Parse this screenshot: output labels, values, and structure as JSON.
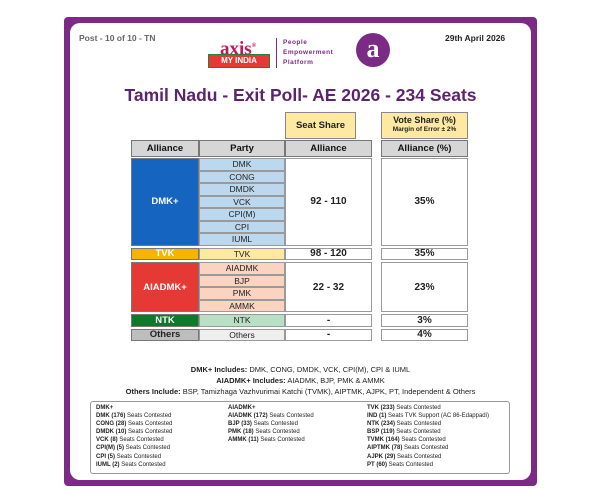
{
  "post_label": "Post - 10 of 10 - TN",
  "date": "29th April 2026",
  "logo": {
    "brand_top": "axis",
    "brand_mark": "®",
    "brand_bottom": "MY INDIA",
    "tagline_1": "People",
    "tagline_2": "Empowerment",
    "tagline_3": "Platform",
    "circle_letter": "a"
  },
  "title": "Tamil Nadu - Exit Poll- AE 2026 - 234 Seats",
  "table": {
    "seat_share_header": "Seat Share",
    "vote_share_header": "Vote Share (%)",
    "margin_of_error": "Margin of Error ± 2%",
    "col_alliance": "Alliance",
    "col_party": "Party",
    "col_seat_alliance": "Alliance",
    "col_vote_alliance": "Alliance (%)",
    "rows": [
      {
        "alliance": "DMK+",
        "parties": [
          "DMK",
          "CONG",
          "DMDK",
          "VCK",
          "CPI(M)",
          "CPI",
          "IUML"
        ],
        "seats": "92 - 110",
        "vote": "35%"
      },
      {
        "alliance": "TVK",
        "parties": [
          "TVK"
        ],
        "seats": "98 - 120",
        "vote": "35%"
      },
      {
        "alliance": "AIADMK+",
        "parties": [
          "AIADMK",
          "BJP",
          "PMK",
          "AMMK"
        ],
        "seats": "22 - 32",
        "vote": "23%"
      },
      {
        "alliance": "NTK",
        "parties": [
          "NTK"
        ],
        "seats": "-",
        "vote": "3%"
      },
      {
        "alliance": "Others",
        "parties": [
          "Others"
        ],
        "seats": "-",
        "vote": "4%"
      }
    ]
  },
  "includes": {
    "dmk_label": "DMK+ Includes:",
    "dmk_text": "DMK, CONG, DMDK, VCK, CPI(M), CPI & IUML",
    "aiadmk_label": "AIADMK+ Includes:",
    "aiadmk_text": "AIADMK, BJP, PMK & AMMK",
    "others_label": "Others Include:",
    "others_text": "BSP, Tamizhaga Vazhvurimai Katchi (TVMK), AIPTMK, AJPK, PT, Independent & Others"
  },
  "seats_contested": {
    "col1_title": "DMK+",
    "col1": [
      "DMK (176) Seats Contested",
      "CONG (28) Seats Contested",
      "DMDK (10) Seats Contested",
      "VCK (8) Seats Contested",
      "CPI(M) (5) Seats Contested",
      "CPI (5) Seats Contested",
      "IUML (2) Seats Contested"
    ],
    "col2_title": "AIADMK+",
    "col2": [
      "AIADMK (172) Seats Contested",
      "BJP (33) Seats Contested",
      "PMK (18) Seats Contested",
      "AMMK (11) Seats Contested"
    ],
    "col3": [
      "TVK (233) Seats Contested",
      "IND (1) Seats TVK Support (AC 86-Edappadi)",
      "NTK (234) Seats Contested",
      "BSP (119) Seats Contested",
      "TVMK (164) Seats Contested",
      "AIPTMK (78) Seats Contested",
      "AJPK (29) Seats Contested",
      "PT (60) Seats Contested"
    ]
  },
  "colors": {
    "frame": "#7b2a86",
    "dmk_alliance": "#1565c0",
    "dmk_party": "#bcd8ee",
    "tvk_alliance": "#f5b400",
    "tvk_party": "#fde9a1",
    "aiadmk_alliance": "#e53935",
    "aiadmk_party": "#fbd3c1",
    "ntk_alliance": "#0b7a2a",
    "ntk_party": "#b9e0c5",
    "others_alliance": "#bdbdbd",
    "others_party": "#eeeeee"
  }
}
